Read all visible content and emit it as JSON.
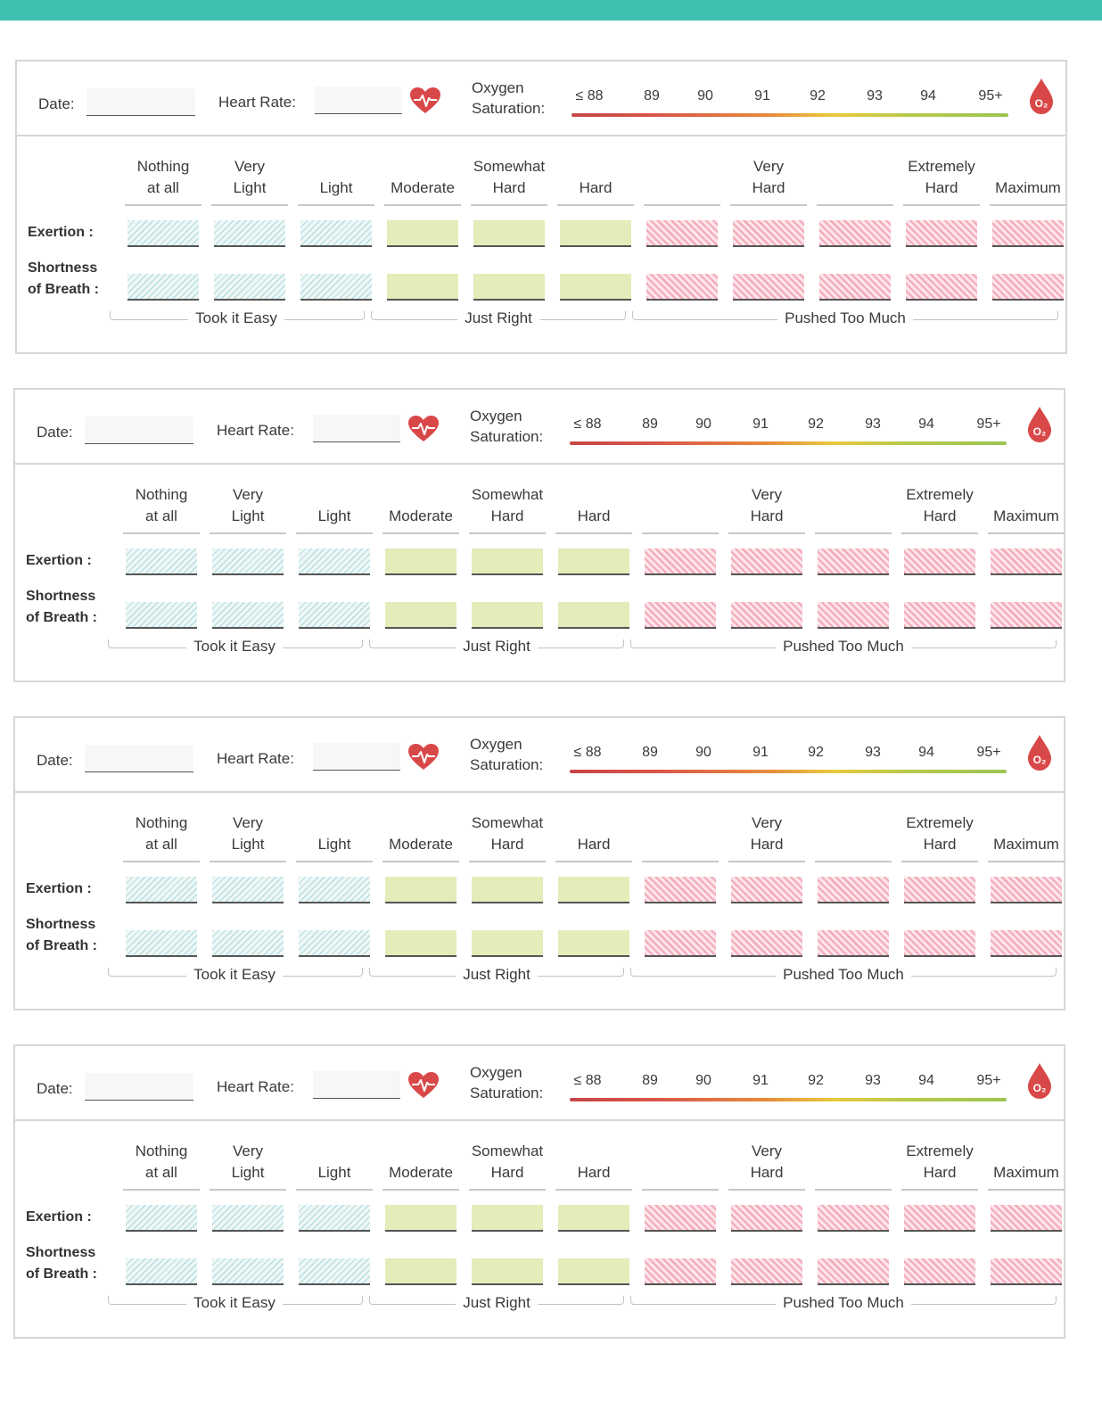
{
  "header": {
    "date_label": "Date:",
    "heart_rate_label": "Heart Rate:",
    "oxygen_label_line1": "Oxygen",
    "oxygen_label_line2": "Saturation:",
    "saturation_ticks": [
      "≤ 88",
      "89",
      "90",
      "91",
      "92",
      "93",
      "94",
      "95+"
    ],
    "o2_badge": "O₂"
  },
  "levels": [
    {
      "line1": "Nothing",
      "line2": "at all"
    },
    {
      "line1": "Very",
      "line2": "Light"
    },
    {
      "line1": "",
      "line2": "Light"
    },
    {
      "line1": "",
      "line2": "Moderate"
    },
    {
      "line1": "Somewhat",
      "line2": "Hard"
    },
    {
      "line1": "",
      "line2": "Hard"
    },
    {
      "line1": "",
      "line2": ""
    },
    {
      "line1": "Very",
      "line2": "Hard"
    },
    {
      "line1": "",
      "line2": ""
    },
    {
      "line1": "Extremely",
      "line2": "Hard"
    },
    {
      "line1": "",
      "line2": "Maximum"
    }
  ],
  "rows": {
    "exertion_label": "Exertion :",
    "breath_label_line1": "Shortness",
    "breath_label_line2": "of Breath :"
  },
  "zones": {
    "easy": "Took it Easy",
    "right": "Just Right",
    "much": "Pushed Too Much"
  },
  "colors": {
    "accent_bar": "#3fc1b0",
    "easy": "#b9dede",
    "right": "#e5ebb9",
    "much": "#f3a9b8",
    "icon_red": "#d94848"
  },
  "entries_count": 4
}
